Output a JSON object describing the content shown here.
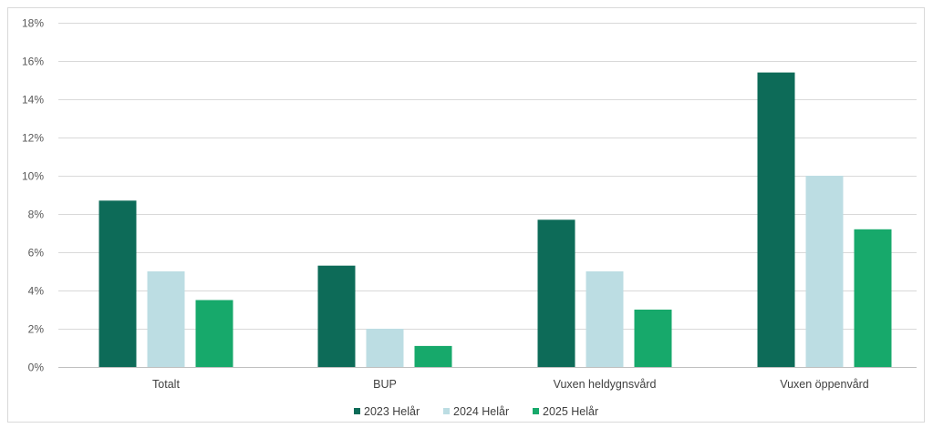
{
  "chart_data": {
    "type": "bar",
    "title": "",
    "xlabel": "",
    "ylabel": "",
    "categories": [
      "Totalt",
      "BUP",
      "Vuxen heldygnsvård",
      "Vuxen öppenvård"
    ],
    "series": [
      {
        "name": "2023 Helår",
        "color": "#0d6b58",
        "values": [
          0.087,
          0.053,
          0.077,
          0.154
        ]
      },
      {
        "name": "2024 Helår",
        "color": "#bcdde3",
        "values": [
          0.05,
          0.02,
          0.05,
          0.1
        ]
      },
      {
        "name": "2025 Helår",
        "color": "#17a96b",
        "values": [
          0.035,
          0.011,
          0.03,
          0.072
        ]
      }
    ],
    "ylim": [
      0,
      0.18
    ],
    "yticks": [
      0,
      0.02,
      0.04,
      0.06,
      0.08,
      0.1,
      0.12,
      0.14,
      0.16,
      0.18
    ],
    "ytick_labels": [
      "0%",
      "2%",
      "4%",
      "6%",
      "8%",
      "10%",
      "12%",
      "14%",
      "16%",
      "18%"
    ],
    "grid": true,
    "legend_position": "bottom"
  }
}
